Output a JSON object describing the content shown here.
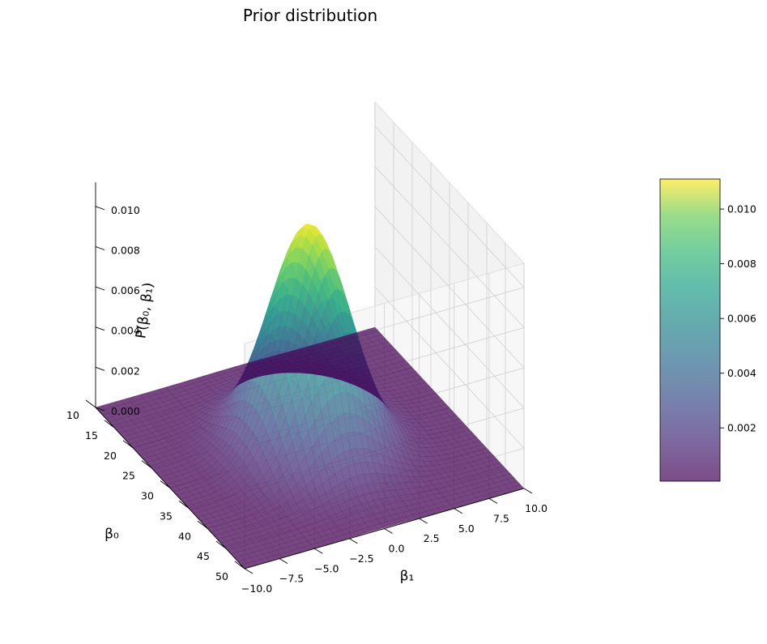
{
  "chart_data": {
    "type": "surface3d",
    "title": "Prior distribution",
    "xlabel": "β₀",
    "ylabel": "β₁",
    "zlabel": "P(β₀, β₁)",
    "xlim": [
      10,
      50
    ],
    "ylim": [
      -10,
      10
    ],
    "zlim": [
      0,
      0.0112
    ],
    "x_ticks": [
      "10",
      "15",
      "20",
      "25",
      "30",
      "35",
      "40",
      "45",
      "50"
    ],
    "y_ticks": [
      "−10.0",
      "−7.5",
      "−5.0",
      "−2.5",
      "0.0",
      "2.5",
      "5.0",
      "7.5",
      "10.0"
    ],
    "z_ticks": [
      "0.000",
      "0.002",
      "0.004",
      "0.006",
      "0.008",
      "0.010"
    ],
    "surface": {
      "function": "bivariate normal",
      "mean": [
        30,
        0
      ],
      "std": [
        6,
        2.5
      ],
      "peak": 0.0111,
      "colormap": "viridis",
      "alpha": 0.7
    },
    "colorbar": {
      "range": [
        5e-05,
        0.0111
      ],
      "ticks": [
        "0.002",
        "0.004",
        "0.006",
        "0.008",
        "0.010"
      ]
    },
    "grid": true,
    "colors": {
      "pane": "#f2f2f2",
      "grid": "#cfcfcf",
      "low": "#440154",
      "high": "#fde725"
    }
  }
}
